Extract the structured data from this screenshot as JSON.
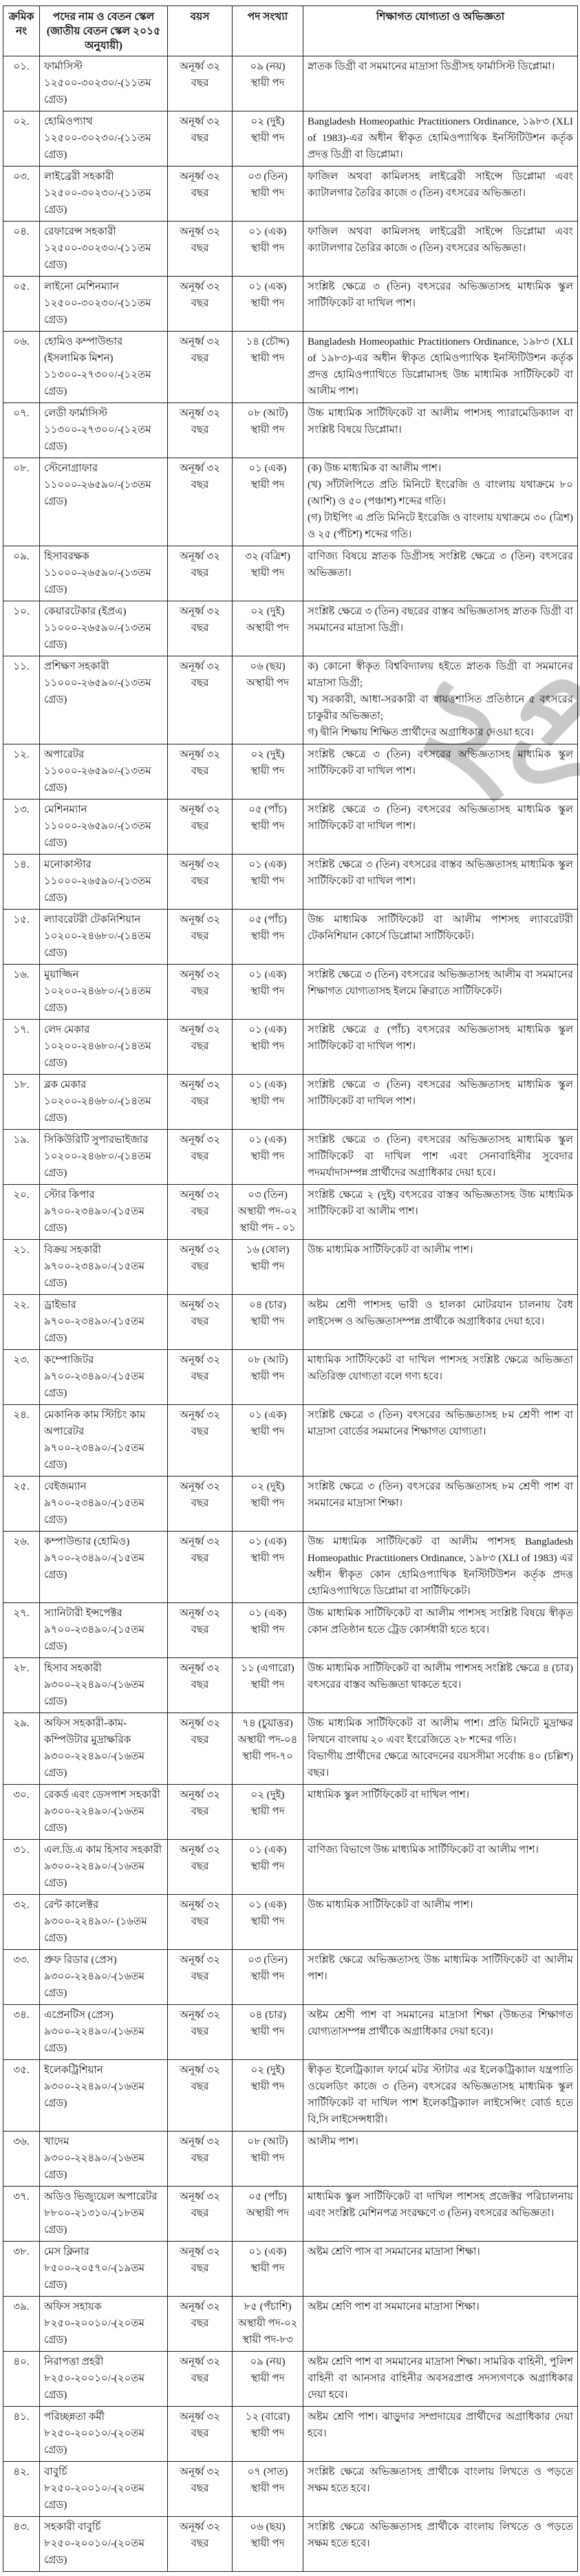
{
  "watermark": {
    "text": "২প্র"
  },
  "table": {
    "headers": {
      "serial": "ক্রমিক নং",
      "post": "পদের নাম ও বেতন স্কেল (জাতীয় বেতন স্কেল ২০১৫ অনুযায়ী)",
      "age": "বয়স",
      "count": "পদ সংখ্যা",
      "qual": "শিক্ষাগত যোগ্যতা ও অভিজ্ঞতা"
    },
    "rows": [
      {
        "serial": "০১.",
        "post": "ফার্মাসিস্ট\n১২৫০০-৩০২৩০/-(১১তম গ্রেড)",
        "age": "অনূর্ধ্ব ৩২\nবছর",
        "count": "০৯ (নয়)\nস্থায়ী পদ",
        "qual": "স্নাতক ডিগ্রী বা সমমানের মাদ্রাসা ডিগ্রীসহ ফার্মাসিস্ট ডিপ্লোমা।"
      },
      {
        "serial": "০২.",
        "post": "হোমিওপ্যাথ\n১২৫০০-৩০২৩০/-(১১তম গ্রেড)",
        "age": "অনূর্ধ্ব ৩২\nবছর",
        "count": "০২ (দুই)\nস্থায়ী পদ",
        "qual": "Bangladesh Homeopathic Practitioners Ordinance, ১৯৮৩ (XLI of 1983)-এর অধীন স্বীকৃত হোমিওপ্যাথিক ইনস্টিটিউশন কর্তৃক প্রদত্ত ডিগ্রী বা ডিপ্লোমা।"
      },
      {
        "serial": "০৩.",
        "post": "লাইব্রেরী সহকারী\n১২৫০০-৩০২৩০/-(১১তম গ্রেড)",
        "age": "অনূর্ধ্ব ৩২\nবছর",
        "count": "০৩ (তিন)\nস্থায়ী পদ",
        "qual": "ফাজিল অথবা কামিলসহ লাইব্রেরী সাইন্সে ডিপ্লোমা এবং ক্যাটালগার তৈরির কাজে ৩ (তিন) বৎসরের অভিজ্ঞতা।"
      },
      {
        "serial": "০৪.",
        "post": "রেফারেন্স সহকারী\n১২৫০০-৩০২৩০/-(১১তম গ্রেড)",
        "age": "অনূর্ধ্ব ৩২\nবছর",
        "count": "০১ (এক)\nস্থায়ী পদ",
        "qual": "ফাজিল অথবা কামিলসহ লাইব্রেরী সাইন্সে ডিপ্লোমা এবং ক্যাটালগার তৈরির কাজে ৩ (তিন) বৎসরের অভিজ্ঞতা।"
      },
      {
        "serial": "০৫.",
        "post": "লাইনো মেশিনম্যান\n১২৫০০-৩০২৩০/-(১১তম গ্রেড)",
        "age": "অনূর্ধ্ব ৩২\nবছর",
        "count": "০১ (এক)\nস্থায়ী পদ",
        "qual": "সংশ্লিষ্ট ক্ষেত্রে ৩ (তিন) বৎসরের অভিজ্ঞতাসহ মাধ্যমিক স্কুল সার্টিফিকেট বা দাখিল পাশ।"
      },
      {
        "serial": "০৬.",
        "post": "হোমিও কম্পাউন্ডার\n(ইসলামিক মিশন)\n১১৩০০-২৭৩০০/-(১২তম গ্রেড)",
        "age": "অনূর্ধ্ব ৩২\nবছর",
        "count": "১৪ (চৌদ্দ)\nস্থায়ী পদ",
        "qual": "Bangladesh Homeopathic Practitioners Ordinance, ১৯৮৩ (XLI of ১৯৮৩)-এর অধীন স্বীকৃত হোমিওপ্যাথিক ইনস্টিটিউশন কর্তৃক প্রদত্ত হোমিওপ্যাথিতে ডিপ্লোমাসহ উচ্চ মাধ্যমিক সার্টিফিকেট বা আলীম পাশ।"
      },
      {
        "serial": "০৭.",
        "post": "লেডী ফার্মাসিস্ট\n১১৩০০-২৭৩০০/-(১২তম গ্রেড)",
        "age": "অনূর্ধ্ব ৩২\nবছর",
        "count": "০৮ (আট)\nস্থায়ী পদ",
        "qual": "উচ্চ মাধ্যমিক সার্টিফিকেট বা আলীম পাশসহ প্যারামেডিক্যাল বা সংশ্লিষ্ট বিষয়ে ডিপ্লোমা।"
      },
      {
        "serial": "০৮.",
        "post": "স্টেনোগ্রাফার\n১১০০০-২৬৫৯০/-(১৩তম গ্রেড)",
        "age": "অনূর্ধ্ব ৩২\nবছর",
        "count": "০১ (এক)\nস্থায়ী পদ",
        "qual": "(ক) উচ্চ মাধ্যমিক বা আলীম পাশ।\n(খ) সাঁটলিপিতে প্রতি মিনিটে ইংরেজি ও বাংলায় যথাক্রমে ৮০ (আশি) ও ৫০ (পঞ্চাশ) শব্দের গতি।\n(গ) টাইপিং এ প্রতি মিনিটে ইংরেজি ও বাংলায় যথাক্রমে ৩০ (ত্রিশ) ও ২৫ (পঁচিশ) শব্দের গতি।"
      },
      {
        "serial": "০৯.",
        "post": "হিসাবরক্ষক\n১১০০০-২৬৫৯০/-(১৩তম গ্রেড)",
        "age": "অনূর্ধ্ব ৩২\nবছর",
        "count": "৩২ (বত্রিশ)\nস্থায়ী পদ",
        "qual": "বাণিজ্য বিষয়ে স্নাতক ডিগ্রীসহ সংশ্লিষ্ট ক্ষেত্রে ৩ (তিন) বৎসরের অভিজ্ঞতা।"
      },
      {
        "serial": "১০.",
        "post": "কেয়ারটেকার (ইপ্রএ)\n১১০০০-২৬৫৯০/-(১৩তম গ্রেড)",
        "age": "অনূর্ধ্ব ৩২\nবছর",
        "count": "০২ (দুই)\nঅস্থায়ী পদ",
        "qual": "সংশ্লিষ্ট ক্ষেত্রে ৩ (তিন) বছরের বাস্তব অভিজ্ঞতাসহ স্নাতক ডিগ্রী বা সমমানের মাদ্রাসা ডিগ্রী।"
      },
      {
        "serial": "১১.",
        "post": "প্রশিক্ষণ সহকারী\n১১০০০-২৬৫৯০/-(১৩তম গ্রেড)",
        "age": "অনূর্ধ্ব ৩২\nবছর",
        "count": "০৬ (ছয়)\nঅস্থায়ী পদ",
        "qual": "ক) কোনো স্বীকৃত বিশ্ববিদ্যালয় হইতে স্নাতক ডিগ্রী বা সমমানের মাদ্রাসা ডিগ্রী;\nখ) সরকারী, আধা-সরকারী বা স্বায়ত্তশাসিত প্রতিষ্ঠানে ৫ বৎসরের চাকুরীর অভিজ্ঞতা;\nগ) দ্বীনি শিক্ষায় শিক্ষিত প্রার্থীদের অগ্রাধিকার দেওয়া হবে।"
      },
      {
        "serial": "১২.",
        "post": "অপারেটর\n১১০০০-২৬৫৯০/-(১৩তম গ্রেড)",
        "age": "অনূর্ধ্ব ৩২\nবছর",
        "count": "০২ (দুই)\nস্থায়ী পদ",
        "qual": "সংশ্লিষ্ট ক্ষেত্রে ৩ (তিন) বৎসরের অভিজ্ঞতাসহ মাধ্যমিক স্কুল সার্টিফিকেট বা দাখিল পাশ।"
      },
      {
        "serial": "১৩.",
        "post": "মেশিনম্যান\n১১০০০-২৬৫৯০/-(১৩তম গ্রেড)",
        "age": "অনূর্ধ্ব ৩২\nবছর",
        "count": "০৫ (পাঁচ)\nস্থায়ী পদ",
        "qual": "সংশ্লিষ্ট ক্ষেত্রে ৩ (তিন) বৎসরের অভিজ্ঞতাসহ মাধ্যমিক স্কুল সার্টিফিকেট বা দাখিল পাশ।"
      },
      {
        "serial": "১৪.",
        "post": "মনোকাস্টার\n১১০০০-২৬৫৯০/-(১৩তম গ্রেড)",
        "age": "অনূর্ধ্ব ৩২\nবছর",
        "count": "০১ (এক)\nস্থায়ী পদ",
        "qual": "সংশ্লিষ্ট ক্ষেত্রে ৩ (তিন) বৎসরের বাস্তব অভিজ্ঞতাসহ মাধ্যমিক স্কুল সার্টিফিকেট বা দাখিল পাশ।"
      },
      {
        "serial": "১৫.",
        "post": "ল্যাবরেটরী টেকনিশিয়ান\n১০২০০-২৪৬৮০/-(১৪তম গ্রেড)",
        "age": "অনূর্ধ্ব ৩২\nবছর",
        "count": "০৫ (পাঁচ)\nস্থায়ী পদ",
        "qual": "উচ্চ মাধ্যমিক সার্টিফিকেট বা আলীম পাশসহ ল্যাবরেটরী টেকনিশিয়ান কোর্সে ডিপ্লোমা সার্টিফিকেট।"
      },
      {
        "serial": "১৬.",
        "post": "মুয়াজ্জিন\n১০২০০-২৪৬৮০/-(১৪তম গ্রেড)",
        "age": "অনূর্ধ্ব ৩২\nবছর",
        "count": "০১ (এক)\nস্থায়ী পদ",
        "qual": "সংশ্লিষ্ট ক্ষেত্রে ৩ (তিন) বৎসরের অভিজ্ঞতাসহ আলীম বা সমমানের শিক্ষাগত যোগ্যতাসহ ইলমে ক্বিরাতে সার্টিফিকেট।"
      },
      {
        "serial": "১৭.",
        "post": "লেদ মেকার\n১০২০০-২৪৬৮০/-(১৪তম গ্রেড)",
        "age": "অনূর্ধ্ব ৩২\nবছর",
        "count": "০১ (এক)\nস্থায়ী পদ",
        "qual": "সংশ্লিষ্ট ক্ষেত্রে ৫ (পাঁচ) বৎসরের অভিজ্ঞতাসহ মাধ্যমিক স্কুল সার্টিফিকেট বা দাখিল পাশ।"
      },
      {
        "serial": "১৮.",
        "post": "ব্লক মেকার\n১০২০০-২৪৬৮০/-(১৪তম গ্রেড)",
        "age": "অনূর্ধ্ব ৩২\nবছর",
        "count": "০১ (এক)\nস্থায়ী পদ",
        "qual": "সংশ্লিষ্ট ক্ষেত্রে ৩ (তিন) বৎসরের অভিজ্ঞতাসহ মাধ্যমিক স্কুল সার্টিফিকেট বা দাখিল পাশ।"
      },
      {
        "serial": "১৯.",
        "post": "সিকিউরিটি সুপারভাইজার\n১০২০০-২৪৬৮০/-(১৪তম গ্রেড)",
        "age": "অনূর্ধ্ব ৩২\nবছর",
        "count": "০১ (এক)\nস্থায়ী পদ",
        "qual": "সংশ্লিষ্ট ক্ষেত্রে ৩ (তিন) বৎসরের অভিজ্ঞতাসহ মাধ্যমিক স্কুল সার্টিফিকেট বা দাখিল পাশ এবং সেনাবাহিনীর সুবেদার পদমর্যাদাসম্পন্ন প্রার্থীদের অগ্রাধিকার দেয়া হবে।"
      },
      {
        "serial": "২০.",
        "post": "স্টোর কিপার\n৯৭০০-২৩৪৯০/-(১৫তম গ্রেড)",
        "age": "অনূর্ধ্ব ৩২\nবছর",
        "count": "০৩ (তিন)\nঅস্থায়ী পদ-০২\nস্থায়ী পদ - ০১",
        "qual": "সংশ্লিষ্ট ক্ষেত্রে ২ (দুই) বৎসরের বাস্তব অভিজ্ঞতাসহ উচ্চ মাধ্যমিক সার্টিফিকেট বা আলীম পাশ।"
      },
      {
        "serial": "২১.",
        "post": "বিক্রয় সহকারী\n৯৭০০-২৩৪৯০/-(১৫তম গ্রেড)",
        "age": "অনূর্ধ্ব ৩২\nবছর",
        "count": "১৬ (ষোল)\nস্থায়ী পদ",
        "qual": "উচ্চ মাধ্যমিক সার্টিফিকেট বা আলীম পাশ।"
      },
      {
        "serial": "২২.",
        "post": "ড্রাইভার\n৯৭০০-২৩৪৯০/-(১৫তম গ্রেড)",
        "age": "অনূর্ধ্ব ৩২\nবছর",
        "count": "০৪ (চার)\nস্থায়ী পদ",
        "qual": "অষ্টম শ্রেণী পাশসহ ভারী ও হালকা মোটরযান চালনায় বৈধ লাইসেন্স ও অভিজ্ঞতাসম্পন্ন প্রার্থীকে অগ্রাধিকার দেয়া হবে।"
      },
      {
        "serial": "২৩.",
        "post": "কম্পোজিটর\n৯৭০০-২৩৪৯০/-(১৫তম গ্রেড)",
        "age": "অনূর্ধ্ব ৩২\nবছর",
        "count": "০৮ (আট)\nস্থায়ী পদ",
        "qual": "মাধ্যমিক সার্টিফিকেট বা দাখিল পাশসহ সংশ্লিষ্ট ক্ষেত্রে অভিজ্ঞতা অতিরিক্ত যোগ্যতা বলে গণ্য হবে।"
      },
      {
        "serial": "২৪.",
        "post": "মেকানিক কাম স্টিচিং কাম অপারেটর\n৯৭০০-২৩৪৯০/-(১৫তম গ্রেড)",
        "age": "অনূর্ধ্ব ৩২\nবছর",
        "count": "০১ (এক)\nস্থায়ী পদ",
        "qual": "সংশ্লিষ্ট ক্ষেত্রে ৩ (তিন) বৎসরের অভিজ্ঞতাসহ ৮ম শ্রেণী পাশ বা মাদ্রাসা বোর্ডের সমমানের শিক্ষাগত যোগ্যতা।"
      },
      {
        "serial": "২৫.",
        "post": "বেইজম্যান\n৯৭০০-২৩৪৯০/-(১৫তম গ্রেড)",
        "age": "অনূর্ধ্ব ৩২\nবছর",
        "count": "০২ (দুই)\nস্থায়ী পদ",
        "qual": "সংশ্লিষ্ট ক্ষেত্রে ৩ (তিন) বৎসরের অভিজ্ঞতাসহ ৮ম শ্রেণী পাশ বা সমমানের মাদ্রাসা শিক্ষা।"
      },
      {
        "serial": "২৬.",
        "post": "কম্পাউন্ডার (হোমিও)\n৯৭০০-২৩৪৯০/-(১৫তম গ্রেড)",
        "age": "অনূর্ধ্ব ৩২\nবছর",
        "count": "০১ (এক)\nস্থায়ী পদ",
        "qual": "উচ্চ মাধ্যমিক সার্টিফিকেট বা আলীম পাশসহ Bangladesh Homeopathic Practitioners Ordinance, ১৯৮৩ (XLI of 1983) এর অধীন স্বীকৃত কোন হোমিওপ্যাথিক ইনস্টিটিউশন কর্তৃক প্রদত্ত হোমিওপ্যাথিতে ডিপ্লোমা বা সার্টিফিকেট।"
      },
      {
        "serial": "২৭.",
        "post": "স্যানিটারী ইন্সপেক্টর\n৯৭০০-২৩৪৯০/-(১৫তম গ্রেড)",
        "age": "অনূর্ধ্ব ৩২\nবছর",
        "count": "০১ (এক)\nস্থায়ী পদ",
        "qual": "উচ্চ মাধ্যমিক সার্টিফিকেট বা আলীম পাশসহ সংশ্লিষ্ট বিষয়ে স্বীকৃত কোন প্রতিষ্ঠান হতে ট্রেড কোর্সধারী হতে হবে।"
      },
      {
        "serial": "২৮.",
        "post": "হিসাব সহকারী\n৯৩০০-২২৪৯০/-(১৬তম গ্রেড)",
        "age": "অনূর্ধ্ব ৩২\nবছর",
        "count": "১১ (এগারো)\nস্থায়ী পদ",
        "qual": "উচ্চ মাধ্যমিক সার্টিফিকেট বা আলীম পাশসহ  সংশ্লিষ্ট ক্ষেত্রে ৪ (চার) বৎসরের বাস্তব অভিজ্ঞতা থাকতে হবে।"
      },
      {
        "serial": "২৯.",
        "post": "অফিস  সহকারী-কাম-কম্পিউটার মুদ্রাক্ষরিক\n৯৩০০-২২৪৯০/-(১৬তম গ্রেড)",
        "age": "অনূর্ধ্ব ৩২\nবছর",
        "count": "৭৪ (চুয়াত্তর)\nঅস্থায়ী পদ-০৪\nস্থায়ী পদ-৭০",
        "qual": "উচ্চ মাধ্যমিক সার্টিফিকেট বা আলীম পাশ। প্রতি মিনিটে মুদ্রাক্ষর লিখনে বাংলায় ২০ এবং ইংরেজিতে ২৮ শব্দের গতি।\nবিভাগীয় প্রার্থীদের ক্ষেত্রে আবেদনের বয়সসীমা সর্বোচ্চ ৪০ (চল্লিশ) বছর।"
      },
      {
        "serial": "৩০.",
        "post": "রেকর্ড এবং ডেসপাশ সহকারী\n৯৩০০-২২৪৯০/-(১৬তম গ্রেড)",
        "age": "অনূর্ধ্ব ৩২\nবছর",
        "count": "০২ (দুই)\nস্থায়ী পদ",
        "qual": "মাধ্যমিক স্কুল সার্টিফিকেট বা দাখিল পাশ।"
      },
      {
        "serial": "৩১.",
        "post": "এল.ডি.এ কাম হিসাব সহকারী\n৯৩০০-২২৪৯০/-(১৬তম গ্রেড)",
        "age": "অনূর্ধ্ব ৩২\nবছর",
        "count": "০১ (এক)\nস্থায়ী পদ",
        "qual": "বাণিজ্য বিভাগে উচ্চ মাধ্যমিক সার্টিফিকেট বা আলীম পাশ।"
      },
      {
        "serial": "৩২.",
        "post": "রেন্ট কালেক্টর\n৯৩০০-২২৪৯০/- (১৬তম গ্রেড)",
        "age": "অনূর্ধ্ব ৩২\nবছর",
        "count": "০১ (এক)\nস্থায়ী পদ",
        "qual": "উচ্চ মাধ্যমিক সার্টিফিকেট বা  আলীম পাশ।"
      },
      {
        "serial": "৩৩.",
        "post": "প্রুফ রিডার (প্রেস)\n৯৩০০-২২৪৯০/-(১৬তম গ্রেড)",
        "age": "অনূর্ধ্ব ৩২\nবছর",
        "count": "০৩ (তিন)\nস্থায়ী পদ",
        "qual": "সংশ্লিষ্ট ক্ষেত্রে অভিজ্ঞতাসহ উচ্চ মাধ্যমিক সার্টিফিকেট বা আলীম পাশ।"
      },
      {
        "serial": "৩৪.",
        "post": "এপ্রেনটিস (প্রেস)\n৯৩০০-২২৪৯০/-(১৬তম গ্রেড)",
        "age": "অনূর্ধ্ব ৩২\nবছর",
        "count": "০৪ (চার)\nস্থায়ী পদ",
        "qual": "অষ্টম শ্রেণী পাশ বা সমমানের মাদ্রাসা শিক্ষা (উচ্চতর শিক্ষাগত যোগ্যতাসম্পন্ন প্রার্থীকে অগ্রাধিকার দেয়া হবে)।"
      },
      {
        "serial": "৩৫.",
        "post": "ইলেকট্রিশিয়ান\n৯৩০০-২২৪৯০/-(১৬তম গ্রেড)",
        "age": "অনূর্ধ্ব ৩২\nবছর",
        "count": "০২ (দুই)\nস্থায়ী পদ",
        "qual": "স্বীকৃত ইলেট্রিক্যাল ফার্মে মটর স্টাটার এর ইলেকট্রিক্যাল যন্ত্রপাতি ওয়েলডিং কাজে ৩ (তিন) বৎসরের অভিজ্ঞতাসহ মাধ্যমিক স্কুল সার্টিফিকেট বা দাখিল পাশ ইলেকট্রিক্যাল লাইসেন্সিং বোর্ড হতে বি,সি লাইসেন্সধারী।"
      },
      {
        "serial": "৩৬.",
        "post": "খাদেম\n৯৩০০-২২৪৯০/-(১৬তম গ্রেড)",
        "age": "অনূর্ধ্ব ৩২\nবছর",
        "count": "০৮ (আট)\nস্থায়ী পদ",
        "qual": "আলীম পাশ।"
      },
      {
        "serial": "৩৭.",
        "post": "অডিও ভিজ্যুয়েল অপারেটর\n৮৮০০-২১৩১০/-(১৮তম গ্রেড)",
        "age": "অনূর্ধ্ব ৩২\nবছর",
        "count": "০৫ (পাঁচ)\nঅস্থায়ী পদ",
        "qual": "মাধ্যমিক স্কুল সার্টিফিকেট বা দাখিল পাশসহ প্রজেক্টর পরিচালনায় এবং সংশ্লিষ্ট মেশিনপত্র সংরক্ষণে ৩ (তিন) বৎসরের অভিজ্ঞতা।"
      },
      {
        "serial": "৩৮.",
        "post": "মেস ক্লিনার\n৮৫০০-২০৫৭০/-(১৯তম গ্রেড)",
        "age": "অনূর্ধ্ব ৩২\nবছর",
        "count": "০১ (এক)\nস্থায়ী পদ",
        "qual": "অষ্টম শ্রেণি পাস বা সমমানের মাদ্রাসা শিক্ষা।"
      },
      {
        "serial": "৩৯.",
        "post": "অফিস সহায়ক\n৮২৫০-২০০১০/-(২০তম গ্রেড)",
        "age": "অনূর্ধ্ব ৩২\nবছর",
        "count": "৮৫ (পঁচাশি)\nঅস্থায়ী পদ-০২\nস্থায়ী পদ-৮৩",
        "qual": "অষ্টম শ্রেণি পাশ বা সমমানের মাদ্রাসা শিক্ষা।"
      },
      {
        "serial": "৪০.",
        "post": "নিরাপত্তা প্রহরী\n৮২৫০-২০০১০/-(২০তম গ্রেড)",
        "age": "অনূর্ধ্ব ৩২\nবছর",
        "count": "০৯ (নয়)\nস্থায়ী পদ",
        "qual": "অষ্টম শ্রেণি পাশ বা সমমানের মাদ্রাসা শিক্ষা। সামরিক বাহিনী, পুলিশ বাহিনী বা আনসার বাহিনীর অবসরপ্রাপ্ত সদস্যগণকে অগ্রাধিকার দেয়া হবে।"
      },
      {
        "serial": "৪১.",
        "post": "পরিচ্ছন্নতা কর্মী\n৮২৫০-২০০১০/-(২০তম গ্রেড)",
        "age": "অনূর্ধ্ব ৩২\nবছর",
        "count": "১২ (বারো)\nস্থায়ী পদ",
        "qual": "অষ্টম শ্রেণি পাশ। ঝাড়ুদার সম্প্রদায়ের প্রার্থীদের অগ্রাধিকার দেয়া হবে।"
      },
      {
        "serial": "৪২.",
        "post": "বাবুর্চি\n৮২৫০-২০০১০/-(২০তম গ্রেড)",
        "age": "অনূর্ধ্ব ৩২\nবছর",
        "count": "০৭ (সাত)\nস্থায়ী পদ",
        "qual": "সংশ্লিষ্ট ক্ষেত্রে অভিজ্ঞতাসহ প্রার্থীকে বাংলায় লিখতে ও পড়তে সক্ষম হতে হবে।"
      },
      {
        "serial": "৪৩.",
        "post": "সহকারী বাবুর্চি\n৮২৫০-২০০১০/-(২০তম গ্রেড)",
        "age": "অনূর্ধ্ব ৩২\nবছর",
        "count": "০৬ (ছয়)\nস্থায়ী পদ",
        "qual": "সংশ্লিষ্ট ক্ষেত্রে অভিজ্ঞতাসহ প্রার্থীকে বাংলায় লিখতে ও পড়তে সক্ষম হতে হবে।"
      }
    ]
  }
}
